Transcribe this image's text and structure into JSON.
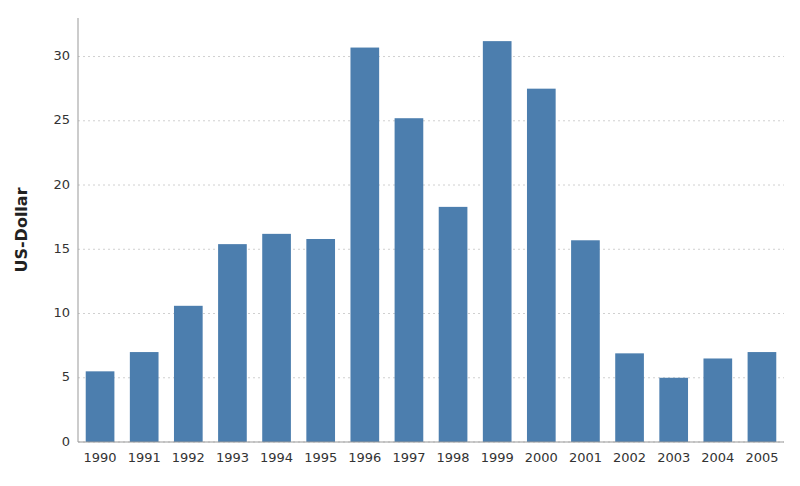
{
  "chart_data": {
    "type": "bar",
    "ylabel": "US-Dollar",
    "categories": [
      "1990",
      "1991",
      "1992",
      "1993",
      "1994",
      "1995",
      "1996",
      "1997",
      "1998",
      "1999",
      "2000",
      "2001",
      "2002",
      "2003",
      "2004",
      "2005"
    ],
    "values": [
      5.5,
      7.0,
      10.6,
      15.4,
      16.2,
      15.8,
      30.7,
      25.2,
      18.3,
      31.2,
      27.5,
      15.7,
      6.9,
      5.0,
      6.5,
      7.0
    ],
    "color": "#4C7EAE",
    "ylim": [
      0,
      33
    ],
    "yticks": [
      0,
      5,
      10,
      15,
      20,
      25,
      30
    ],
    "grid": true
  }
}
